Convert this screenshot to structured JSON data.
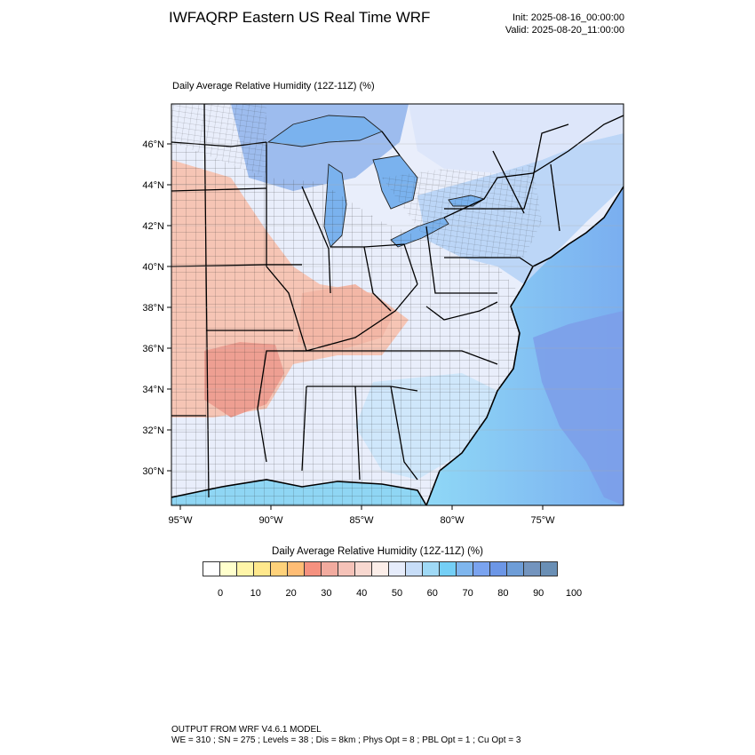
{
  "header": {
    "title": "IWFAQRP Eastern US Real Time WRF",
    "init": "Init: 2025-08-16_00:00:00",
    "valid": "Valid: 2025-08-20_11:00:00"
  },
  "plot": {
    "title": "Daily Average Relative Humidity (12Z-11Z)   (%)",
    "lat_labels": [
      "46°N",
      "44°N",
      "42°N",
      "40°N",
      "38°N",
      "36°N",
      "34°N",
      "32°N",
      "30°N"
    ],
    "lon_labels": [
      "95°W",
      "90°W",
      "85°W",
      "80°W",
      "75°W"
    ]
  },
  "colorbar": {
    "title": "Daily Average Relative Humidity (12Z-11Z)  (%)",
    "colors": [
      "#ffffff",
      "#ffffcc",
      "#fff5a8",
      "#ffe88c",
      "#ffd27a",
      "#ffbd75",
      "#f5917f",
      "#f2ab9f",
      "#f5c2b8",
      "#f8d8d0",
      "#fceee9",
      "#e6ecfb",
      "#c7ddf8",
      "#9fd9f6",
      "#74cff6",
      "#7fb6ee",
      "#7aa3ef",
      "#6c96e6",
      "#6e9dd7",
      "#7394be",
      "#6a8fb5"
    ],
    "labels": [
      "0",
      "10",
      "20",
      "30",
      "40",
      "50",
      "60",
      "70",
      "80",
      "90",
      "100"
    ]
  },
  "footer": {
    "line1": "OUTPUT FROM WRF V4.6.1 MODEL",
    "line2": "WE = 310 ; SN = 275 ; Levels = 38 ; Dis = 8km ; Phys Opt = 8 ; PBL Opt = 1 ; Cu Opt = 3"
  }
}
